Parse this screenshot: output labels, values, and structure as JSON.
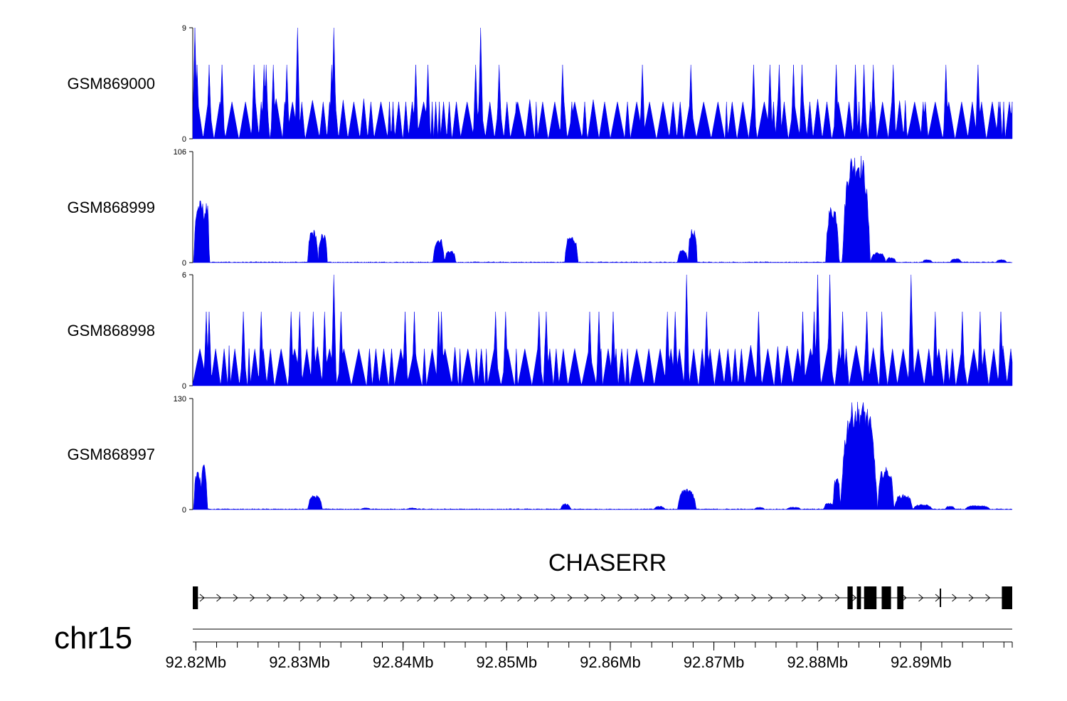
{
  "chart_data": {
    "type": "area",
    "title": "",
    "xlabel": "",
    "ylabel": "",
    "colors": {
      "signal": "#0000ee",
      "axis": "#000000",
      "gene": "#000000"
    },
    "x_range_mb": [
      92.8197,
      92.8988
    ],
    "x_ticks": [
      {
        "value": 92.82,
        "label": "92.82Mb"
      },
      {
        "value": 92.83,
        "label": "92.83Mb"
      },
      {
        "value": 92.84,
        "label": "92.84Mb"
      },
      {
        "value": 92.85,
        "label": "92.85Mb"
      },
      {
        "value": 92.86,
        "label": "92.86Mb"
      },
      {
        "value": 92.87,
        "label": "92.87Mb"
      },
      {
        "value": 92.88,
        "label": "92.88Mb"
      },
      {
        "value": 92.89,
        "label": "92.89Mb"
      }
    ],
    "chromosome": "chr15",
    "gene": {
      "name": "CHASERR",
      "strand": "+",
      "start": 92.8197,
      "end": 92.8988,
      "exons": [
        [
          92.8197,
          92.8202
        ],
        [
          92.8829,
          92.8834
        ],
        [
          92.8838,
          92.8842
        ],
        [
          92.8845,
          92.8857
        ],
        [
          92.8862,
          92.8871
        ],
        [
          92.8877,
          92.8883
        ],
        [
          92.8918,
          92.8919
        ],
        [
          92.8978,
          92.8988
        ]
      ]
    },
    "series": [
      {
        "name": "GSM869000",
        "ymax": 9,
        "ylim": [
          0,
          9
        ],
        "profile": "sparse",
        "spikes": [
          [
            92.8199,
            9
          ],
          [
            92.8201,
            6
          ],
          [
            92.8213,
            6
          ],
          [
            92.8225,
            6
          ],
          [
            92.8256,
            6
          ],
          [
            92.8266,
            6
          ],
          [
            92.8268,
            6
          ],
          [
            92.8275,
            6
          ],
          [
            92.8288,
            6
          ],
          [
            92.8298,
            9
          ],
          [
            92.8331,
            6
          ],
          [
            92.8333,
            9
          ],
          [
            92.8362,
            3
          ],
          [
            92.8412,
            6
          ],
          [
            92.8424,
            6
          ],
          [
            92.8475,
            9
          ],
          [
            92.847,
            6
          ],
          [
            92.8493,
            6
          ],
          [
            92.8509,
            3
          ],
          [
            92.8554,
            6
          ],
          [
            92.8563,
            3
          ],
          [
            92.8631,
            6
          ],
          [
            92.8678,
            6
          ],
          [
            92.8738,
            6
          ],
          [
            92.8754,
            6
          ],
          [
            92.8763,
            6
          ],
          [
            92.8777,
            6
          ],
          [
            92.8785,
            6
          ],
          [
            92.8818,
            6
          ],
          [
            92.8837,
            6
          ],
          [
            92.8845,
            6
          ],
          [
            92.8854,
            6
          ],
          [
            92.8873,
            6
          ],
          [
            92.8902,
            3
          ],
          [
            92.8924,
            6
          ],
          [
            92.8955,
            6
          ],
          [
            92.8975,
            3
          ],
          [
            92.8988,
            3
          ]
        ]
      },
      {
        "name": "GSM868999",
        "ymax": 106,
        "ylim": [
          0,
          106
        ],
        "profile": "peaks",
        "peaks": [
          [
            92.8198,
            92.821,
            60
          ],
          [
            92.8207,
            92.8213,
            58
          ],
          [
            92.8308,
            92.8318,
            32
          ],
          [
            92.8318,
            92.8327,
            28
          ],
          [
            92.8429,
            92.844,
            24
          ],
          [
            92.844,
            92.8451,
            12
          ],
          [
            92.8556,
            92.8569,
            26
          ],
          [
            92.8665,
            92.8675,
            12
          ],
          [
            92.8675,
            92.8684,
            32
          ],
          [
            92.8808,
            92.8821,
            55
          ],
          [
            92.8824,
            92.8851,
            106
          ],
          [
            92.8851,
            92.8866,
            10
          ],
          [
            92.8866,
            92.8876,
            5
          ],
          [
            92.8901,
            92.8911,
            3
          ],
          [
            92.8928,
            92.8939,
            4
          ],
          [
            92.8972,
            92.8983,
            3
          ]
        ]
      },
      {
        "name": "GSM868998",
        "ymax": 6,
        "ylim": [
          0,
          6
        ],
        "profile": "sparse",
        "spikes": [
          [
            92.821,
            4
          ],
          [
            92.8213,
            4
          ],
          [
            92.8246,
            4
          ],
          [
            92.8263,
            4
          ],
          [
            92.8292,
            4
          ],
          [
            92.83,
            4
          ],
          [
            92.8313,
            4
          ],
          [
            92.8324,
            4
          ],
          [
            92.8333,
            6
          ],
          [
            92.834,
            4
          ],
          [
            92.8402,
            4
          ],
          [
            92.8411,
            4
          ],
          [
            92.8434,
            4
          ],
          [
            92.8437,
            4
          ],
          [
            92.8489,
            4
          ],
          [
            92.8499,
            4
          ],
          [
            92.8531,
            4
          ],
          [
            92.8538,
            4
          ],
          [
            92.858,
            4
          ],
          [
            92.8589,
            4
          ],
          [
            92.8603,
            4
          ],
          [
            92.8655,
            4
          ],
          [
            92.8663,
            4
          ],
          [
            92.8674,
            6
          ],
          [
            92.8693,
            4
          ],
          [
            92.8743,
            4
          ],
          [
            92.8786,
            4
          ],
          [
            92.8797,
            4
          ],
          [
            92.88,
            6
          ],
          [
            92.8812,
            6
          ],
          [
            92.8824,
            4
          ],
          [
            92.8848,
            4
          ],
          [
            92.8862,
            4
          ],
          [
            92.8891,
            4
          ],
          [
            92.889,
            6
          ],
          [
            92.8914,
            4
          ],
          [
            92.894,
            4
          ],
          [
            92.8957,
            4
          ],
          [
            92.8977,
            4
          ]
        ]
      },
      {
        "name": "GSM868997",
        "ymax": 130,
        "ylim": [
          0,
          130
        ],
        "profile": "peaks",
        "peaks": [
          [
            92.8198,
            92.8206,
            45
          ],
          [
            92.8205,
            92.8211,
            55
          ],
          [
            92.8308,
            92.8322,
            18
          ],
          [
            92.8359,
            92.8369,
            2
          ],
          [
            92.8404,
            92.8414,
            2
          ],
          [
            92.8552,
            92.8562,
            7
          ],
          [
            92.8642,
            92.8653,
            4
          ],
          [
            92.8665,
            92.8683,
            25
          ],
          [
            92.8739,
            92.8749,
            3
          ],
          [
            92.877,
            92.8784,
            3
          ],
          [
            92.8806,
            92.8816,
            8
          ],
          [
            92.8815,
            92.8822,
            38
          ],
          [
            92.8822,
            92.8858,
            128
          ],
          [
            92.8858,
            92.8874,
            50
          ],
          [
            92.8874,
            92.8892,
            18
          ],
          [
            92.8892,
            92.8911,
            6
          ],
          [
            92.8923,
            92.8933,
            4
          ],
          [
            92.8942,
            92.8967,
            5
          ]
        ]
      }
    ]
  }
}
